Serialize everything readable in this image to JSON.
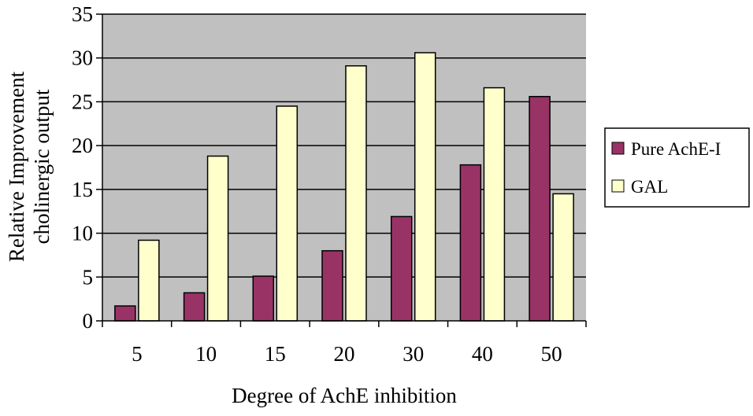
{
  "chart_data": {
    "type": "bar",
    "title": "",
    "xlabel": "Degree of AchE inhibition",
    "ylabel_lines": [
      "Relative Improvement",
      "cholinergic output"
    ],
    "categories": [
      "5",
      "10",
      "15",
      "20",
      "30",
      "40",
      "50"
    ],
    "series": [
      {
        "name": "Pure AchE-I",
        "color": "#993366",
        "values": [
          1.7,
          3.2,
          5.1,
          8.0,
          11.9,
          17.8,
          25.6
        ]
      },
      {
        "name": "GAL",
        "color": "#FFFFCC",
        "values": [
          9.2,
          18.8,
          24.5,
          29.1,
          30.6,
          26.6,
          14.5
        ]
      }
    ],
    "ylim": [
      0,
      35
    ],
    "yticks": [
      "0",
      "5",
      "10",
      "15",
      "20",
      "25",
      "30",
      "35"
    ],
    "plot_background": "#C0C0C0",
    "grid": true,
    "legend": "right"
  }
}
